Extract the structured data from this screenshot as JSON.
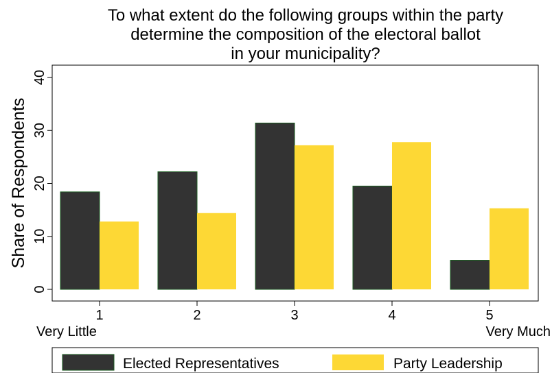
{
  "chart_data": {
    "type": "bar",
    "title_lines": [
      "To what extent do the following groups within the party",
      "determine the composition of the electoral ballot",
      "in your municipality?"
    ],
    "ylabel": "Share of Respondents",
    "xlabel": "",
    "ylim": [
      0,
      40
    ],
    "yticks": [
      "0",
      "10",
      "20",
      "30",
      "40"
    ],
    "categories": [
      "1",
      "2",
      "3",
      "4",
      "5"
    ],
    "category_sublabels": [
      "Very Little",
      "",
      "",
      "",
      "Very Much"
    ],
    "series": [
      {
        "name": "Elected Representatives",
        "color": "#333333",
        "values": [
          18.4,
          22.2,
          31.4,
          19.5,
          5.5
        ]
      },
      {
        "name": "Party Leadership",
        "color": "#fdd835",
        "values": [
          12.8,
          14.4,
          27.2,
          27.8,
          15.3
        ]
      }
    ],
    "bar_edge_color": "#1b5e20",
    "grid": false,
    "legend_position": "bottom"
  }
}
